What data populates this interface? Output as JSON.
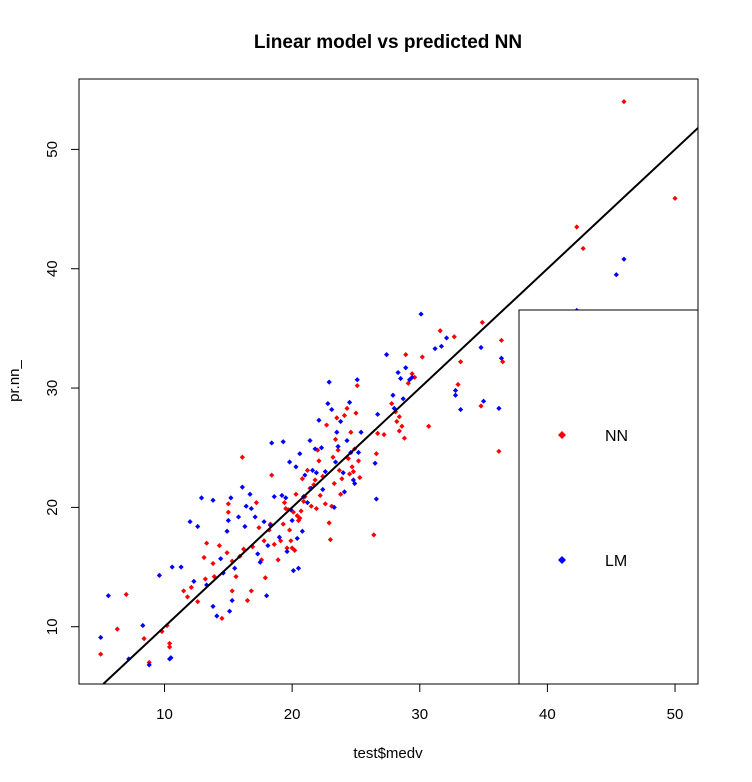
{
  "chart_data": {
    "type": "scatter",
    "title": "Linear model vs predicted NN",
    "xlabel": "test$medv",
    "ylabel": "pr.nn_",
    "xlim": [
      3.3,
      51.8
    ],
    "ylim": [
      5.2,
      55.9
    ],
    "xticks": [
      10,
      20,
      30,
      40,
      50
    ],
    "yticks": [
      10,
      20,
      30,
      40,
      50
    ],
    "grid": false,
    "legend_position": "bottom-right",
    "reference_line": {
      "intercept": 0,
      "slope": 1,
      "color": "#000000"
    },
    "series": [
      {
        "name": "NN",
        "color": "#ff0000",
        "points": [
          [
            5.0,
            7.7
          ],
          [
            6.3,
            9.8
          ],
          [
            7.0,
            12.7
          ],
          [
            8.4,
            9.0
          ],
          [
            8.8,
            7.0
          ],
          [
            9.8,
            9.6
          ],
          [
            10.4,
            8.3
          ],
          [
            10.4,
            8.6
          ],
          [
            10.2,
            10.1
          ],
          [
            11.5,
            13.0
          ],
          [
            11.8,
            12.5
          ],
          [
            12.1,
            13.3
          ],
          [
            12.6,
            12.1
          ],
          [
            13.2,
            14.0
          ],
          [
            13.1,
            15.8
          ],
          [
            13.3,
            17.0
          ],
          [
            13.8,
            15.3
          ],
          [
            13.9,
            14.2
          ],
          [
            14.3,
            16.8
          ],
          [
            14.5,
            10.7
          ],
          [
            14.9,
            16.2
          ],
          [
            15.0,
            19.6
          ],
          [
            15.0,
            20.3
          ],
          [
            15.3,
            15.5
          ],
          [
            15.3,
            13.0
          ],
          [
            15.6,
            14.2
          ],
          [
            15.9,
            15.9
          ],
          [
            16.1,
            24.2
          ],
          [
            16.2,
            16.5
          ],
          [
            16.5,
            12.2
          ],
          [
            16.8,
            13.0
          ],
          [
            16.9,
            16.7
          ],
          [
            17.2,
            20.4
          ],
          [
            17.4,
            18.3
          ],
          [
            17.6,
            15.6
          ],
          [
            17.8,
            17.2
          ],
          [
            17.9,
            14.1
          ],
          [
            18.2,
            18.1
          ],
          [
            18.3,
            18.6
          ],
          [
            18.4,
            22.7
          ],
          [
            18.6,
            16.9
          ],
          [
            18.9,
            15.6
          ],
          [
            19.1,
            17.2
          ],
          [
            19.3,
            18.6
          ],
          [
            19.4,
            20.4
          ],
          [
            19.5,
            19.9
          ],
          [
            19.6,
            16.6
          ],
          [
            19.7,
            19.8
          ],
          [
            19.8,
            18.1
          ],
          [
            19.9,
            17.2
          ],
          [
            20.0,
            16.6
          ],
          [
            20.1,
            19.6
          ],
          [
            20.2,
            16.4
          ],
          [
            20.3,
            21.1
          ],
          [
            20.4,
            19.3
          ],
          [
            20.5,
            18.9
          ],
          [
            20.6,
            19.1
          ],
          [
            20.7,
            19.7
          ],
          [
            20.8,
            22.4
          ],
          [
            20.9,
            20.5
          ],
          [
            21.0,
            20.9
          ],
          [
            21.2,
            23.1
          ],
          [
            21.4,
            21.6
          ],
          [
            21.5,
            20.1
          ],
          [
            21.7,
            21.9
          ],
          [
            21.8,
            22.3
          ],
          [
            21.9,
            19.9
          ],
          [
            22.0,
            24.8
          ],
          [
            22.1,
            23.9
          ],
          [
            22.2,
            21.0
          ],
          [
            22.4,
            22.6
          ],
          [
            22.6,
            20.3
          ],
          [
            22.7,
            26.9
          ],
          [
            22.9,
            18.7
          ],
          [
            23.0,
            17.3
          ],
          [
            23.1,
            20.1
          ],
          [
            23.2,
            24.2
          ],
          [
            23.3,
            22.0
          ],
          [
            23.4,
            25.7
          ],
          [
            23.5,
            27.5
          ],
          [
            23.6,
            24.8
          ],
          [
            23.7,
            23.1
          ],
          [
            23.8,
            21.1
          ],
          [
            23.9,
            22.4
          ],
          [
            24.1,
            27.7
          ],
          [
            24.3,
            28.3
          ],
          [
            24.4,
            24.1
          ],
          [
            24.5,
            22.8
          ],
          [
            24.6,
            26.3
          ],
          [
            24.7,
            23.4
          ],
          [
            24.8,
            23.0
          ],
          [
            24.9,
            24.9
          ],
          [
            25.0,
            27.9
          ],
          [
            25.1,
            30.2
          ],
          [
            25.2,
            23.9
          ],
          [
            25.3,
            22.5
          ],
          [
            26.4,
            17.7
          ],
          [
            26.6,
            24.5
          ],
          [
            26.7,
            26.2
          ],
          [
            27.2,
            26.1
          ],
          [
            27.8,
            28.7
          ],
          [
            28.1,
            28.0
          ],
          [
            28.2,
            27.2
          ],
          [
            28.4,
            27.6
          ],
          [
            28.4,
            26.4
          ],
          [
            28.6,
            26.8
          ],
          [
            28.8,
            25.8
          ],
          [
            28.9,
            32.8
          ],
          [
            29.1,
            30.4
          ],
          [
            29.4,
            31.2
          ],
          [
            29.6,
            30.9
          ],
          [
            30.2,
            32.6
          ],
          [
            30.7,
            26.8
          ],
          [
            31.6,
            34.8
          ],
          [
            32.7,
            34.3
          ],
          [
            33.2,
            32.2
          ],
          [
            33.0,
            30.3
          ],
          [
            34.9,
            35.5
          ],
          [
            34.8,
            28.5
          ],
          [
            36.2,
            24.7
          ],
          [
            36.4,
            34.0
          ],
          [
            36.5,
            32.2
          ],
          [
            42.3,
            43.5
          ],
          [
            42.8,
            41.7
          ],
          [
            46.0,
            54.0
          ],
          [
            50.0,
            45.9
          ]
        ]
      },
      {
        "name": "LM",
        "color": "#0000ff",
        "points": [
          [
            5.0,
            9.1
          ],
          [
            5.6,
            12.6
          ],
          [
            7.2,
            7.3
          ],
          [
            8.3,
            10.1
          ],
          [
            8.8,
            6.8
          ],
          [
            9.6,
            14.3
          ],
          [
            10.4,
            7.3
          ],
          [
            10.6,
            15.0
          ],
          [
            10.5,
            7.4
          ],
          [
            11.3,
            15.0
          ],
          [
            12.0,
            18.8
          ],
          [
            12.3,
            13.8
          ],
          [
            12.6,
            18.4
          ],
          [
            12.9,
            20.8
          ],
          [
            13.3,
            13.5
          ],
          [
            13.8,
            11.7
          ],
          [
            13.8,
            20.6
          ],
          [
            14.1,
            10.9
          ],
          [
            14.4,
            15.7
          ],
          [
            14.6,
            14.5
          ],
          [
            14.9,
            18.0
          ],
          [
            15.0,
            18.9
          ],
          [
            15.1,
            11.3
          ],
          [
            15.2,
            20.8
          ],
          [
            15.3,
            12.2
          ],
          [
            15.5,
            14.9
          ],
          [
            15.8,
            19.2
          ],
          [
            16.1,
            21.7
          ],
          [
            16.3,
            18.4
          ],
          [
            16.4,
            20.1
          ],
          [
            16.7,
            21.1
          ],
          [
            16.8,
            19.9
          ],
          [
            17.1,
            19.2
          ],
          [
            17.3,
            16.1
          ],
          [
            17.5,
            15.4
          ],
          [
            17.8,
            18.8
          ],
          [
            18.0,
            12.6
          ],
          [
            18.1,
            16.8
          ],
          [
            18.3,
            18.5
          ],
          [
            18.4,
            25.4
          ],
          [
            18.6,
            20.9
          ],
          [
            19.0,
            17.5
          ],
          [
            19.2,
            21.0
          ],
          [
            19.3,
            25.5
          ],
          [
            19.5,
            20.8
          ],
          [
            19.6,
            16.3
          ],
          [
            19.8,
            23.8
          ],
          [
            19.9,
            19.8
          ],
          [
            20.0,
            18.9
          ],
          [
            20.1,
            14.7
          ],
          [
            20.3,
            23.4
          ],
          [
            20.4,
            17.4
          ],
          [
            20.5,
            14.9
          ],
          [
            20.6,
            24.5
          ],
          [
            20.8,
            18.0
          ],
          [
            20.9,
            20.9
          ],
          [
            21.0,
            22.7
          ],
          [
            21.2,
            20.4
          ],
          [
            21.4,
            25.6
          ],
          [
            21.5,
            21.6
          ],
          [
            21.6,
            23.1
          ],
          [
            21.8,
            24.9
          ],
          [
            21.9,
            22.9
          ],
          [
            22.1,
            27.3
          ],
          [
            22.3,
            25.0
          ],
          [
            22.4,
            21.5
          ],
          [
            22.6,
            23.0
          ],
          [
            22.8,
            28.7
          ],
          [
            22.9,
            30.5
          ],
          [
            23.1,
            28.2
          ],
          [
            23.3,
            20.0
          ],
          [
            23.4,
            23.8
          ],
          [
            23.5,
            26.3
          ],
          [
            23.6,
            25.1
          ],
          [
            23.8,
            27.2
          ],
          [
            24.0,
            22.9
          ],
          [
            24.1,
            21.3
          ],
          [
            24.3,
            25.6
          ],
          [
            24.5,
            28.8
          ],
          [
            24.6,
            24.6
          ],
          [
            24.8,
            22.3
          ],
          [
            24.9,
            22.0
          ],
          [
            25.1,
            30.7
          ],
          [
            25.2,
            24.6
          ],
          [
            25.4,
            26.3
          ],
          [
            26.5,
            23.7
          ],
          [
            26.6,
            20.7
          ],
          [
            26.7,
            27.8
          ],
          [
            27.4,
            32.8
          ],
          [
            27.9,
            29.4
          ],
          [
            28.0,
            28.3
          ],
          [
            28.3,
            31.3
          ],
          [
            28.5,
            30.8
          ],
          [
            28.7,
            29.1
          ],
          [
            28.9,
            31.7
          ],
          [
            29.2,
            30.7
          ],
          [
            29.4,
            30.9
          ],
          [
            30.1,
            36.2
          ],
          [
            31.2,
            33.3
          ],
          [
            31.7,
            33.5
          ],
          [
            32.1,
            34.2
          ],
          [
            32.8,
            29.8
          ],
          [
            32.8,
            29.4
          ],
          [
            33.2,
            28.2
          ],
          [
            34.8,
            33.4
          ],
          [
            35.0,
            28.9
          ],
          [
            36.2,
            28.3
          ],
          [
            36.4,
            32.5
          ],
          [
            42.3,
            36.5
          ],
          [
            45.4,
            39.5
          ],
          [
            46.0,
            40.8
          ]
        ]
      }
    ]
  }
}
